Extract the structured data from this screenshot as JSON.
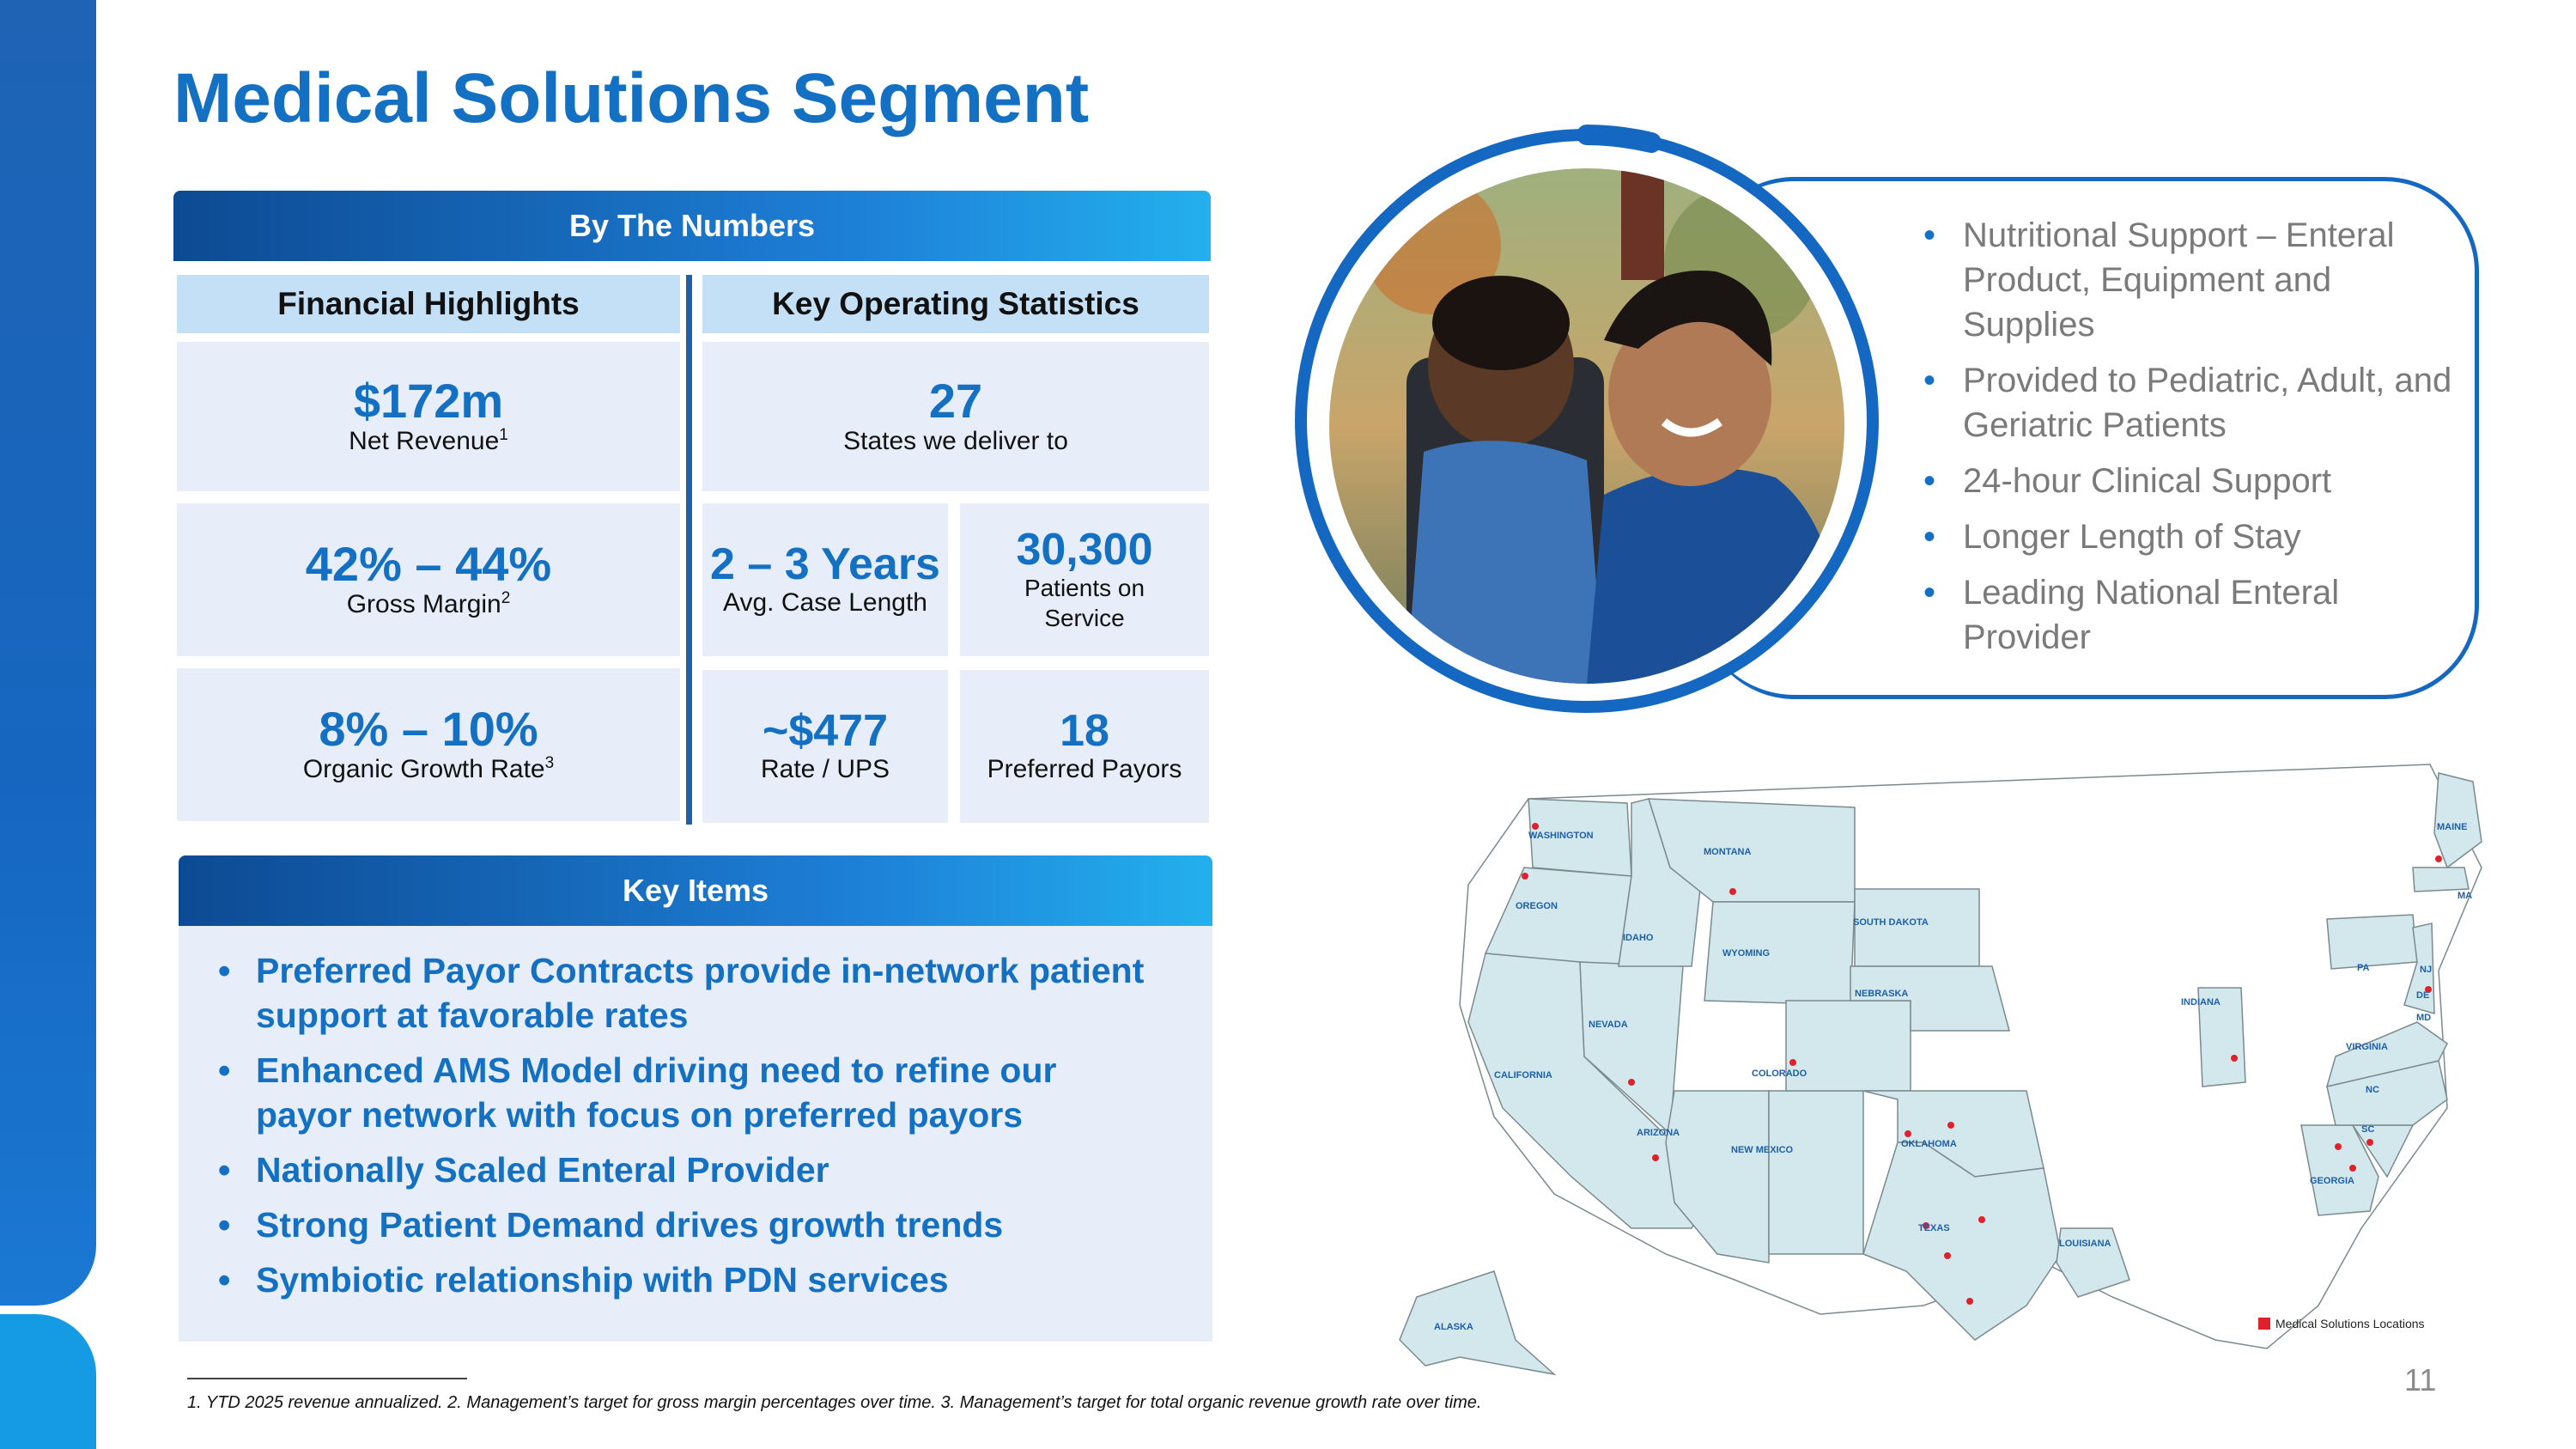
{
  "title": "Medical Solutions Segment",
  "numbers_panel": {
    "header": "By The Numbers",
    "financial_header": "Financial Highlights",
    "operating_header": "Key Operating Statistics",
    "net_revenue": {
      "value": "$172m",
      "label": "Net Revenue",
      "note": "1"
    },
    "gross_margin": {
      "value": "42% – 44%",
      "label": "Gross Margin",
      "note": "2"
    },
    "organic_growth": {
      "value": "8% – 10%",
      "label": "Organic Growth Rate",
      "note": "3"
    },
    "states": {
      "value": "27",
      "label": "States we deliver to"
    },
    "case_length": {
      "value": "2 – 3 Years",
      "label": "Avg. Case Length"
    },
    "patients": {
      "value": "30,300",
      "label": "Patients on Service"
    },
    "rate": {
      "value": "~$477",
      "label": "Rate / UPS"
    },
    "payors": {
      "value": "18",
      "label": "Preferred Payors"
    }
  },
  "key_items": {
    "header": "Key Items",
    "items": [
      "Preferred Payor Contracts provide in-network patient support at favorable rates",
      "Enhanced AMS Model driving need to refine our payor network with focus on preferred payors",
      "Nationally Scaled Enteral Provider",
      "Strong Patient Demand drives growth trends",
      "Symbiotic relationship with PDN services"
    ]
  },
  "services": [
    "Nutritional Support – Enteral Product, Equipment and Supplies",
    "Provided to Pediatric, Adult, and Geriatric Patients",
    "24-hour Clinical Support",
    "Longer Length of Stay",
    "Leading National Enteral Provider"
  ],
  "map": {
    "states": [
      "WASHINGTON",
      "OREGON",
      "CALIFORNIA",
      "NEVADA",
      "IDAHO",
      "MONTANA",
      "WYOMING",
      "ARIZONA",
      "NEW MEXICO",
      "COLORADO",
      "SOUTH DAKOTA",
      "NEBRASKA",
      "OKLAHOMA",
      "TEXAS",
      "LOUISIANA",
      "INDIANA",
      "GEORGIA",
      "SC",
      "NC",
      "VIRGINIA",
      "PA",
      "NJ",
      "DE",
      "MD",
      "MA",
      "MAINE",
      "ALASKA"
    ],
    "legend": "Medical Solutions Locations",
    "legend_color": "#e0202a",
    "fill_color": "#d3e8ec"
  },
  "footnote": "1. YTD 2025 revenue annualized. 2. Management’s target for gross margin percentages over time. 3. Management’s target for total organic revenue growth rate over time.",
  "page_number": "11",
  "colors": {
    "primary": "#1470c2",
    "panel": "#e7eef9",
    "subhead": "#c4e0f7"
  }
}
